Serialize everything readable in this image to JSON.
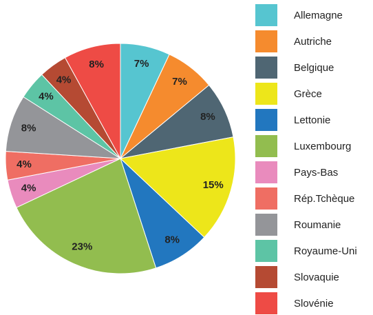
{
  "chart_data": {
    "type": "pie",
    "categories": [
      "Allemagne",
      "Autriche",
      "Belgique",
      "Grèce",
      "Lettonie",
      "Luxembourg",
      "Pays-Bas",
      "Rép.Tchèque",
      "Roumanie",
      "Royaume-Uni",
      "Slovaquie",
      "Slovénie"
    ],
    "values": [
      7,
      7,
      8,
      15,
      8,
      23,
      4,
      4,
      8,
      4,
      4,
      8
    ],
    "value_labels": [
      "7%",
      "7%",
      "8%",
      "15%",
      "8%",
      "23%",
      "4%",
      "4%",
      "8%",
      "4%",
      "4%",
      "8%"
    ],
    "colors": [
      "#56c5d0",
      "#f58b2e",
      "#4f6673",
      "#ede61a",
      "#2277bf",
      "#92bd4f",
      "#e98bbd",
      "#ef6e63",
      "#949599",
      "#5dc4a5",
      "#b54a33",
      "#ee4b45"
    ],
    "legend": "right"
  }
}
